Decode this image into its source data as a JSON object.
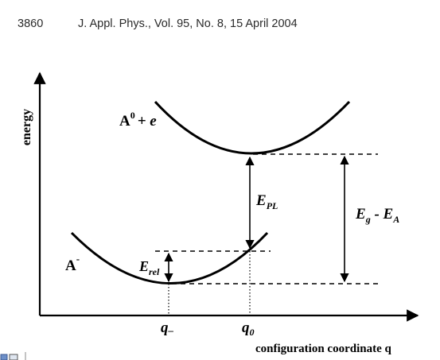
{
  "header": {
    "page_number": "3860",
    "citation": "J. Appl. Phys., Vol. 95, No. 8, 15 April 2004"
  },
  "figure": {
    "y_axis_label": "energy",
    "x_axis_label": "configuration coordinate q",
    "upper_state": {
      "base": "A",
      "superscript": "0",
      "suffix": "+ e"
    },
    "lower_state": {
      "base": "A",
      "superscript": "-"
    },
    "e_pl": {
      "base": "E",
      "subscript": "PL"
    },
    "e_rel": {
      "base": "E",
      "subscript": "rel"
    },
    "eg_ea": {
      "a": "E",
      "a_sub": "g",
      "mid": " - ",
      "b": "E",
      "b_sub": "A"
    },
    "q_minus": {
      "base": "q",
      "subscript": "–"
    },
    "q_zero": {
      "base": "q",
      "subscript": "0"
    }
  },
  "colors": {
    "ink": "#000000",
    "header_text": "#2a2a2a"
  }
}
